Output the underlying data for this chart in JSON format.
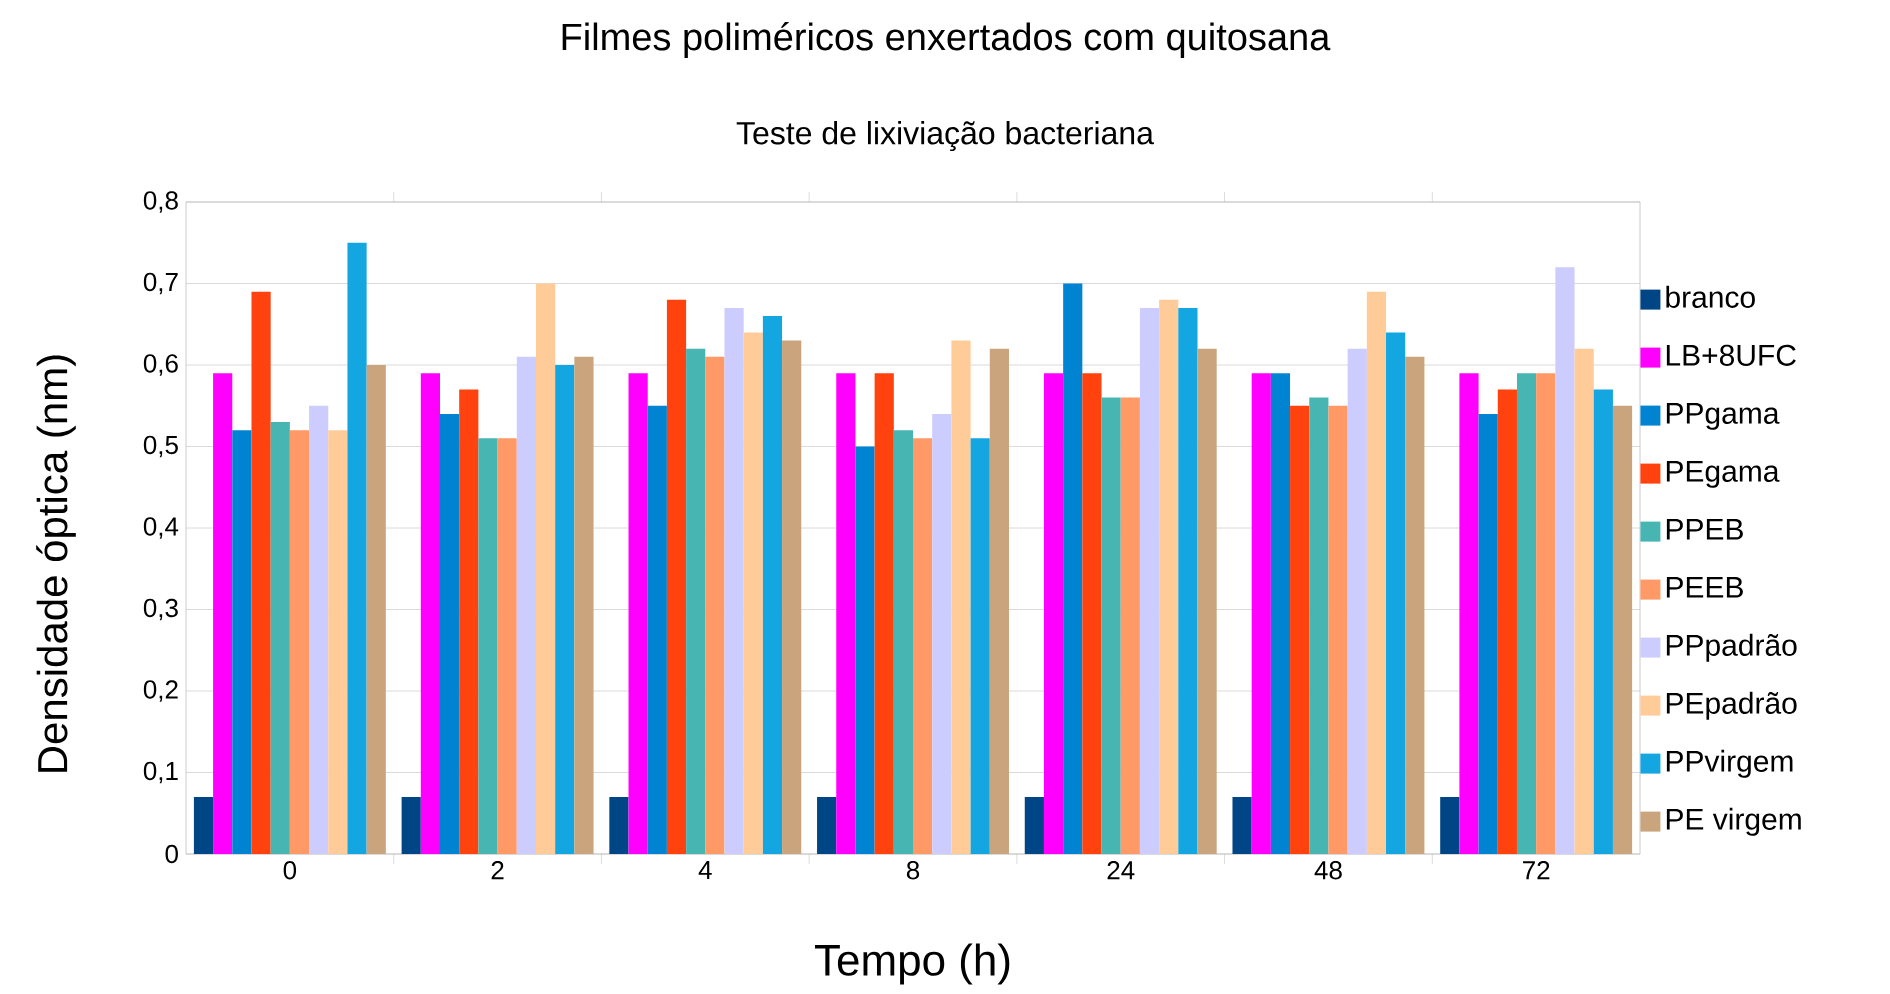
{
  "chart_data": {
    "type": "bar",
    "title": "Filmes poliméricos enxertados com quitosana",
    "subtitle": "Teste de lixiviação bacteriana",
    "xlabel": "Tempo (h)",
    "ylabel": "Densidade óptica (nm)",
    "categories": [
      "0",
      "2",
      "4",
      "8",
      "24",
      "48",
      "72"
    ],
    "series": [
      {
        "name": "branco",
        "color": "#004586",
        "values": [
          0.07,
          0.07,
          0.07,
          0.07,
          0.07,
          0.07,
          0.07
        ]
      },
      {
        "name": "LB+8UFC",
        "color": "#ff00ff",
        "values": [
          0.59,
          0.59,
          0.59,
          0.59,
          0.59,
          0.59,
          0.59
        ]
      },
      {
        "name": "PPgama",
        "color": "#0084d1",
        "values": [
          0.52,
          0.54,
          0.55,
          0.5,
          0.7,
          0.59,
          0.54
        ]
      },
      {
        "name": "PEgama",
        "color": "#ff420e",
        "values": [
          0.69,
          0.57,
          0.68,
          0.59,
          0.59,
          0.55,
          0.57
        ]
      },
      {
        "name": "PPEB",
        "color": "#47b5b2",
        "values": [
          0.53,
          0.51,
          0.62,
          0.52,
          0.56,
          0.56,
          0.59
        ]
      },
      {
        "name": "PEEB",
        "color": "#ff9966",
        "values": [
          0.52,
          0.51,
          0.61,
          0.51,
          0.56,
          0.55,
          0.59
        ]
      },
      {
        "name": "PPpadrão",
        "color": "#ccccff",
        "values": [
          0.55,
          0.61,
          0.67,
          0.54,
          0.67,
          0.62,
          0.72
        ]
      },
      {
        "name": "PEpadrão",
        "color": "#ffcc99",
        "values": [
          0.52,
          0.7,
          0.64,
          0.63,
          0.68,
          0.69,
          0.62
        ]
      },
      {
        "name": "PPvirgem",
        "color": "#14a6e0",
        "values": [
          0.75,
          0.6,
          0.66,
          0.51,
          0.67,
          0.64,
          0.57
        ]
      },
      {
        "name": "PE virgem",
        "color": "#c9a47c",
        "values": [
          0.6,
          0.61,
          0.63,
          0.62,
          0.62,
          0.61,
          0.55
        ]
      }
    ],
    "ylim": [
      0,
      0.8
    ],
    "yticks": [
      0,
      {
        "value": 0.1,
        "label": "0,1"
      },
      {
        "value": 0.2,
        "label": "0,2"
      },
      {
        "value": 0.3,
        "label": "0,3"
      },
      {
        "value": 0.4,
        "label": "0,4"
      },
      {
        "value": 0.5,
        "label": "0,5"
      },
      {
        "value": 0.6,
        "label": "0,6"
      },
      {
        "value": 0.7,
        "label": "0,7"
      },
      {
        "value": 0.8,
        "label": "0,8"
      }
    ],
    "grid": "y",
    "legend": "right"
  }
}
